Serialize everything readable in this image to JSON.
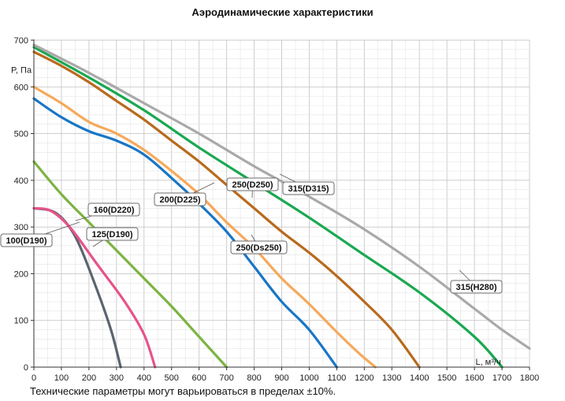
{
  "chart_data": {
    "type": "line",
    "title": "Аэродинамические характеристики",
    "xlabel": "L, м³/ч",
    "ylabel": "P, Па",
    "xlim": [
      0,
      1800
    ],
    "ylim": [
      0,
      700
    ],
    "xticks": [
      "0",
      "100",
      "200",
      "300",
      "400",
      "500",
      "600",
      "700",
      "800",
      "900",
      "1000",
      "1100",
      "1200",
      "1300",
      "1400",
      "1500",
      "1600",
      "1700",
      "1800"
    ],
    "yticks": [
      "0",
      "100",
      "200",
      "300",
      "400",
      "500",
      "600",
      "700"
    ],
    "grid": true,
    "series": [
      {
        "name": "100(D190)",
        "color": "#5b6470",
        "points": [
          [
            0,
            340
          ],
          [
            80,
            330
          ],
          [
            150,
            280
          ],
          [
            220,
            180
          ],
          [
            280,
            80
          ],
          [
            315,
            0
          ]
        ]
      },
      {
        "name": "125(D190)",
        "color": "#e6538a",
        "points": [
          [
            0,
            340
          ],
          [
            60,
            335
          ],
          [
            130,
            300
          ],
          [
            230,
            220
          ],
          [
            330,
            140
          ],
          [
            400,
            70
          ],
          [
            440,
            0
          ]
        ]
      },
      {
        "name": "160(D220)",
        "color": "#7cb342",
        "points": [
          [
            0,
            440
          ],
          [
            100,
            370
          ],
          [
            200,
            310
          ],
          [
            300,
            250
          ],
          [
            400,
            190
          ],
          [
            500,
            130
          ],
          [
            600,
            65
          ],
          [
            700,
            0
          ]
        ]
      },
      {
        "name": "200(D225)",
        "color": "#1976c6",
        "points": [
          [
            0,
            575
          ],
          [
            100,
            535
          ],
          [
            200,
            505
          ],
          [
            300,
            485
          ],
          [
            400,
            455
          ],
          [
            500,
            405
          ],
          [
            600,
            350
          ],
          [
            700,
            290
          ],
          [
            800,
            215
          ],
          [
            900,
            140
          ],
          [
            1000,
            80
          ],
          [
            1100,
            0
          ]
        ]
      },
      {
        "name": "250(Ds250)",
        "color": "#f5a95b",
        "points": [
          [
            0,
            600
          ],
          [
            100,
            565
          ],
          [
            200,
            525
          ],
          [
            300,
            500
          ],
          [
            400,
            465
          ],
          [
            500,
            420
          ],
          [
            600,
            370
          ],
          [
            700,
            310
          ],
          [
            800,
            255
          ],
          [
            900,
            190
          ],
          [
            1000,
            135
          ],
          [
            1100,
            75
          ],
          [
            1180,
            30
          ],
          [
            1240,
            0
          ]
        ]
      },
      {
        "name": "250(D250)",
        "color": "#b86a1d",
        "points": [
          [
            0,
            675
          ],
          [
            100,
            645
          ],
          [
            200,
            610
          ],
          [
            300,
            570
          ],
          [
            400,
            530
          ],
          [
            500,
            485
          ],
          [
            600,
            440
          ],
          [
            700,
            390
          ],
          [
            800,
            340
          ],
          [
            900,
            290
          ],
          [
            1000,
            245
          ],
          [
            1100,
            195
          ],
          [
            1200,
            140
          ],
          [
            1300,
            80
          ],
          [
            1400,
            0
          ]
        ]
      },
      {
        "name": "315(D315)",
        "color": "#1aa851",
        "points": [
          [
            0,
            685
          ],
          [
            200,
            620
          ],
          [
            400,
            550
          ],
          [
            600,
            470
          ],
          [
            800,
            395
          ],
          [
            1000,
            320
          ],
          [
            1200,
            240
          ],
          [
            1400,
            160
          ],
          [
            1600,
            65
          ],
          [
            1700,
            0
          ]
        ]
      },
      {
        "name": "315(H280)",
        "color": "#a9a9a9",
        "points": [
          [
            0,
            690
          ],
          [
            200,
            630
          ],
          [
            400,
            565
          ],
          [
            600,
            500
          ],
          [
            800,
            430
          ],
          [
            1000,
            365
          ],
          [
            1200,
            295
          ],
          [
            1400,
            215
          ],
          [
            1600,
            125
          ],
          [
            1700,
            80
          ],
          [
            1800,
            40
          ]
        ]
      }
    ],
    "callouts": [
      {
        "text": "100(D190)",
        "series": "100(D190)"
      },
      {
        "text": "160(D220)",
        "series": "160(D220)"
      },
      {
        "text": "125(D190)",
        "series": "125(D190)"
      },
      {
        "text": "200(D225)",
        "series": "200(D225)"
      },
      {
        "text": "250(D250)",
        "series": "250(D250)"
      },
      {
        "text": "315(D315)",
        "series": "315(D315)"
      },
      {
        "text": "250(Ds250)",
        "series": "250(Ds250)"
      },
      {
        "text": "315(H280)",
        "series": "315(H280)"
      }
    ]
  },
  "footnote": "Технические параметры могут варьироваться в пределах ±10%."
}
